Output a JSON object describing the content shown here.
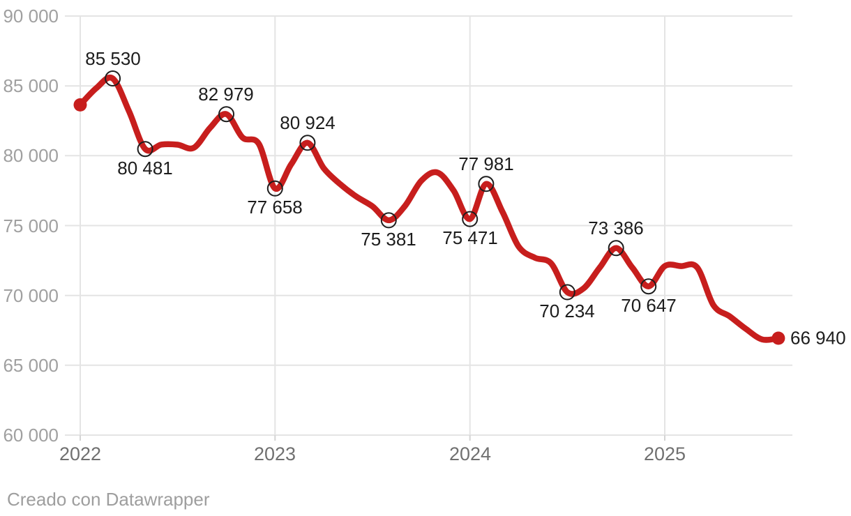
{
  "footer": {
    "credit": "Creado con Datawrapper"
  },
  "chart_data": {
    "type": "line",
    "title": "",
    "xlabel": "",
    "ylabel": "",
    "legend": "none",
    "grid": true,
    "ylim": [
      60000,
      90000
    ],
    "x": [
      "2022-01",
      "2022-02",
      "2022-03",
      "2022-04",
      "2022-05",
      "2022-06",
      "2022-07",
      "2022-08",
      "2022-09",
      "2022-10",
      "2022-11",
      "2022-12",
      "2023-01",
      "2023-02",
      "2023-03",
      "2023-04",
      "2023-05",
      "2023-06",
      "2023-07",
      "2023-08",
      "2023-09",
      "2023-10",
      "2023-11",
      "2023-12",
      "2024-01",
      "2024-02",
      "2024-03",
      "2024-04",
      "2024-05",
      "2024-06",
      "2024-07",
      "2024-08",
      "2024-09",
      "2024-10",
      "2024-11",
      "2024-12",
      "2025-01",
      "2025-02",
      "2025-03",
      "2025-04",
      "2025-05",
      "2025-06",
      "2025-07",
      "2025-08"
    ],
    "values": [
      83640,
      84850,
      85530,
      83200,
      80481,
      80800,
      80790,
      80570,
      82000,
      82979,
      81300,
      80850,
      77658,
      79400,
      80924,
      79100,
      77980,
      77080,
      76380,
      75381,
      76400,
      78200,
      78800,
      77500,
      75471,
      77981,
      76000,
      73500,
      72700,
      72300,
      70234,
      70500,
      72000,
      73386,
      72000,
      70647,
      72100,
      72100,
      72000,
      69300,
      68500,
      67600,
      66850,
      66940
    ],
    "point_labels": [
      {
        "index": 2,
        "text": "85 530",
        "position": "above"
      },
      {
        "index": 4,
        "text": "80 481",
        "position": "below"
      },
      {
        "index": 9,
        "text": "82 979",
        "position": "above"
      },
      {
        "index": 12,
        "text": "77 658",
        "position": "below"
      },
      {
        "index": 14,
        "text": "80 924",
        "position": "above"
      },
      {
        "index": 19,
        "text": "75 381",
        "position": "below"
      },
      {
        "index": 24,
        "text": "75 471",
        "position": "below"
      },
      {
        "index": 25,
        "text": "77 981",
        "position": "above"
      },
      {
        "index": 30,
        "text": "70 234",
        "position": "below"
      },
      {
        "index": 33,
        "text": "73 386",
        "position": "above"
      },
      {
        "index": 35,
        "text": "70 647",
        "position": "below"
      },
      {
        "index": 43,
        "text": "66 940",
        "position": "right"
      }
    ],
    "markers": {
      "start_dot_index": 0,
      "end_dot_index": 43
    },
    "y_axis": {
      "min": 60000,
      "max": 90000,
      "tick_step": 5000,
      "ticks": [
        {
          "value": 90000,
          "label": "90 000"
        },
        {
          "value": 85000,
          "label": "85 000"
        },
        {
          "value": 80000,
          "label": "80 000"
        },
        {
          "value": 75000,
          "label": "75 000"
        },
        {
          "value": 70000,
          "label": "70 000"
        },
        {
          "value": 65000,
          "label": "65 000"
        },
        {
          "value": 60000,
          "label": "60 000"
        }
      ]
    },
    "x_axis": {
      "ticks": [
        {
          "label": "2022",
          "month_index": 0
        },
        {
          "label": "2023",
          "month_index": 12
        },
        {
          "label": "2024",
          "month_index": 24
        },
        {
          "label": "2025",
          "month_index": 36
        }
      ]
    },
    "colors": {
      "line": "#c71e1d",
      "marker_stroke": "#1d1d1d",
      "grid": "#e4e4e4",
      "axis_tick": "#d4d4d4",
      "y_tick_text": "#a0a0a0",
      "x_tick_text": "#707070",
      "point_label_text": "#1c1c1c",
      "footer_text": "#9e9e9e"
    }
  }
}
